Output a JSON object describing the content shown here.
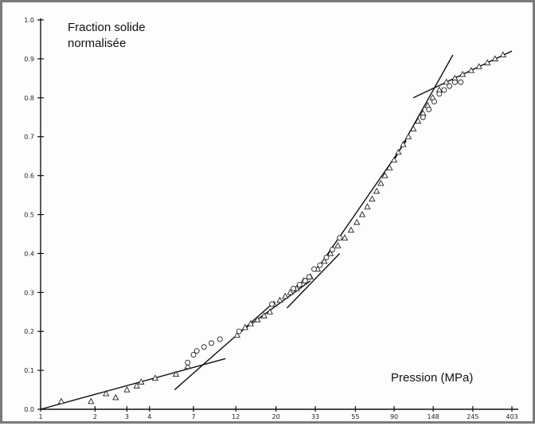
{
  "chart_data": {
    "type": "scatter",
    "ylabel_line1": "Fraction solide",
    "ylabel_line2": "normalisée",
    "xlabel": "Pression (MPa)",
    "x_scale": "log",
    "xlim": [
      1,
      403
    ],
    "ylim": [
      0,
      1.0
    ],
    "x_ticks": [
      "1",
      "2",
      "3",
      "4",
      "7",
      "12",
      "20",
      "33",
      "55",
      "90",
      "148",
      "245",
      "403"
    ],
    "y_ticks": [
      "0.0",
      "0.1",
      "0.2",
      "0.3",
      "0.4",
      "0.5",
      "0.6",
      "0.7",
      "0.8",
      "0.9",
      "1.0"
    ],
    "grid": false,
    "series": [
      {
        "marker": "triangle",
        "points": [
          [
            1.3,
            0.02
          ],
          [
            1.9,
            0.02
          ],
          [
            2.3,
            0.04
          ],
          [
            2.6,
            0.03
          ],
          [
            3.0,
            0.05
          ],
          [
            3.4,
            0.06
          ],
          [
            3.6,
            0.07
          ],
          [
            4.3,
            0.08
          ],
          [
            5.6,
            0.09
          ],
          [
            6.5,
            0.11
          ],
          [
            12.2,
            0.19
          ],
          [
            13.5,
            0.21
          ],
          [
            14.5,
            0.22
          ],
          [
            15.8,
            0.23
          ],
          [
            17.2,
            0.24
          ],
          [
            18.5,
            0.25
          ],
          [
            19.5,
            0.27
          ],
          [
            21.0,
            0.28
          ],
          [
            22.5,
            0.29
          ],
          [
            24.0,
            0.3
          ],
          [
            26.0,
            0.31
          ],
          [
            28.5,
            0.33
          ],
          [
            31.0,
            0.34
          ],
          [
            34.0,
            0.36
          ],
          [
            37.0,
            0.38
          ],
          [
            40.0,
            0.4
          ],
          [
            44.0,
            0.42
          ],
          [
            48.0,
            0.44
          ],
          [
            52.0,
            0.46
          ],
          [
            56.0,
            0.48
          ],
          [
            60.0,
            0.5
          ],
          [
            64.0,
            0.52
          ],
          [
            68.0,
            0.54
          ],
          [
            72.0,
            0.56
          ],
          [
            76.0,
            0.58
          ],
          [
            80.0,
            0.6
          ],
          [
            85.0,
            0.62
          ],
          [
            90.0,
            0.64
          ],
          [
            95.0,
            0.66
          ],
          [
            101.0,
            0.68
          ],
          [
            108.0,
            0.7
          ],
          [
            115.0,
            0.72
          ],
          [
            122.0,
            0.74
          ],
          [
            130.0,
            0.76
          ],
          [
            138.0,
            0.78
          ],
          [
            147.0,
            0.8
          ],
          [
            160.0,
            0.82
          ],
          [
            175.0,
            0.84
          ],
          [
            195.0,
            0.85
          ],
          [
            215.0,
            0.86
          ],
          [
            240.0,
            0.87
          ],
          [
            265.0,
            0.88
          ],
          [
            295.0,
            0.89
          ],
          [
            325.0,
            0.9
          ],
          [
            360.0,
            0.91
          ]
        ]
      },
      {
        "marker": "circle",
        "points": [
          [
            6.5,
            0.12
          ],
          [
            7.0,
            0.14
          ],
          [
            7.3,
            0.15
          ],
          [
            8.0,
            0.16
          ],
          [
            8.8,
            0.17
          ],
          [
            9.8,
            0.18
          ],
          [
            12.5,
            0.2
          ],
          [
            19.0,
            0.27
          ],
          [
            25.0,
            0.31
          ],
          [
            27.0,
            0.32
          ],
          [
            29.0,
            0.33
          ],
          [
            30.5,
            0.34
          ],
          [
            32.5,
            0.36
          ],
          [
            35.0,
            0.37
          ],
          [
            38.0,
            0.39
          ],
          [
            41.0,
            0.41
          ],
          [
            45.0,
            0.44
          ],
          [
            130.0,
            0.75
          ],
          [
            140.0,
            0.77
          ],
          [
            150.0,
            0.79
          ],
          [
            160.0,
            0.81
          ],
          [
            170.0,
            0.82
          ],
          [
            182.0,
            0.83
          ],
          [
            195.0,
            0.84
          ],
          [
            210.0,
            0.84
          ]
        ]
      }
    ],
    "tangent_lines": [
      [
        [
          1.0,
          0.0
        ],
        [
          10.5,
          0.13
        ]
      ],
      [
        [
          5.5,
          0.05
        ],
        [
          19.0,
          0.27
        ]
      ],
      [
        [
          12.0,
          0.19
        ],
        [
          31.0,
          0.33
        ]
      ],
      [
        [
          23.0,
          0.26
        ],
        [
          45.0,
          0.4
        ]
      ],
      [
        [
          35.0,
          0.37
        ],
        [
          105.0,
          0.69
        ]
      ],
      [
        [
          90.0,
          0.64
        ],
        [
          190.0,
          0.91
        ]
      ],
      [
        [
          115.0,
          0.8
        ],
        [
          403.0,
          0.92
        ]
      ]
    ]
  }
}
